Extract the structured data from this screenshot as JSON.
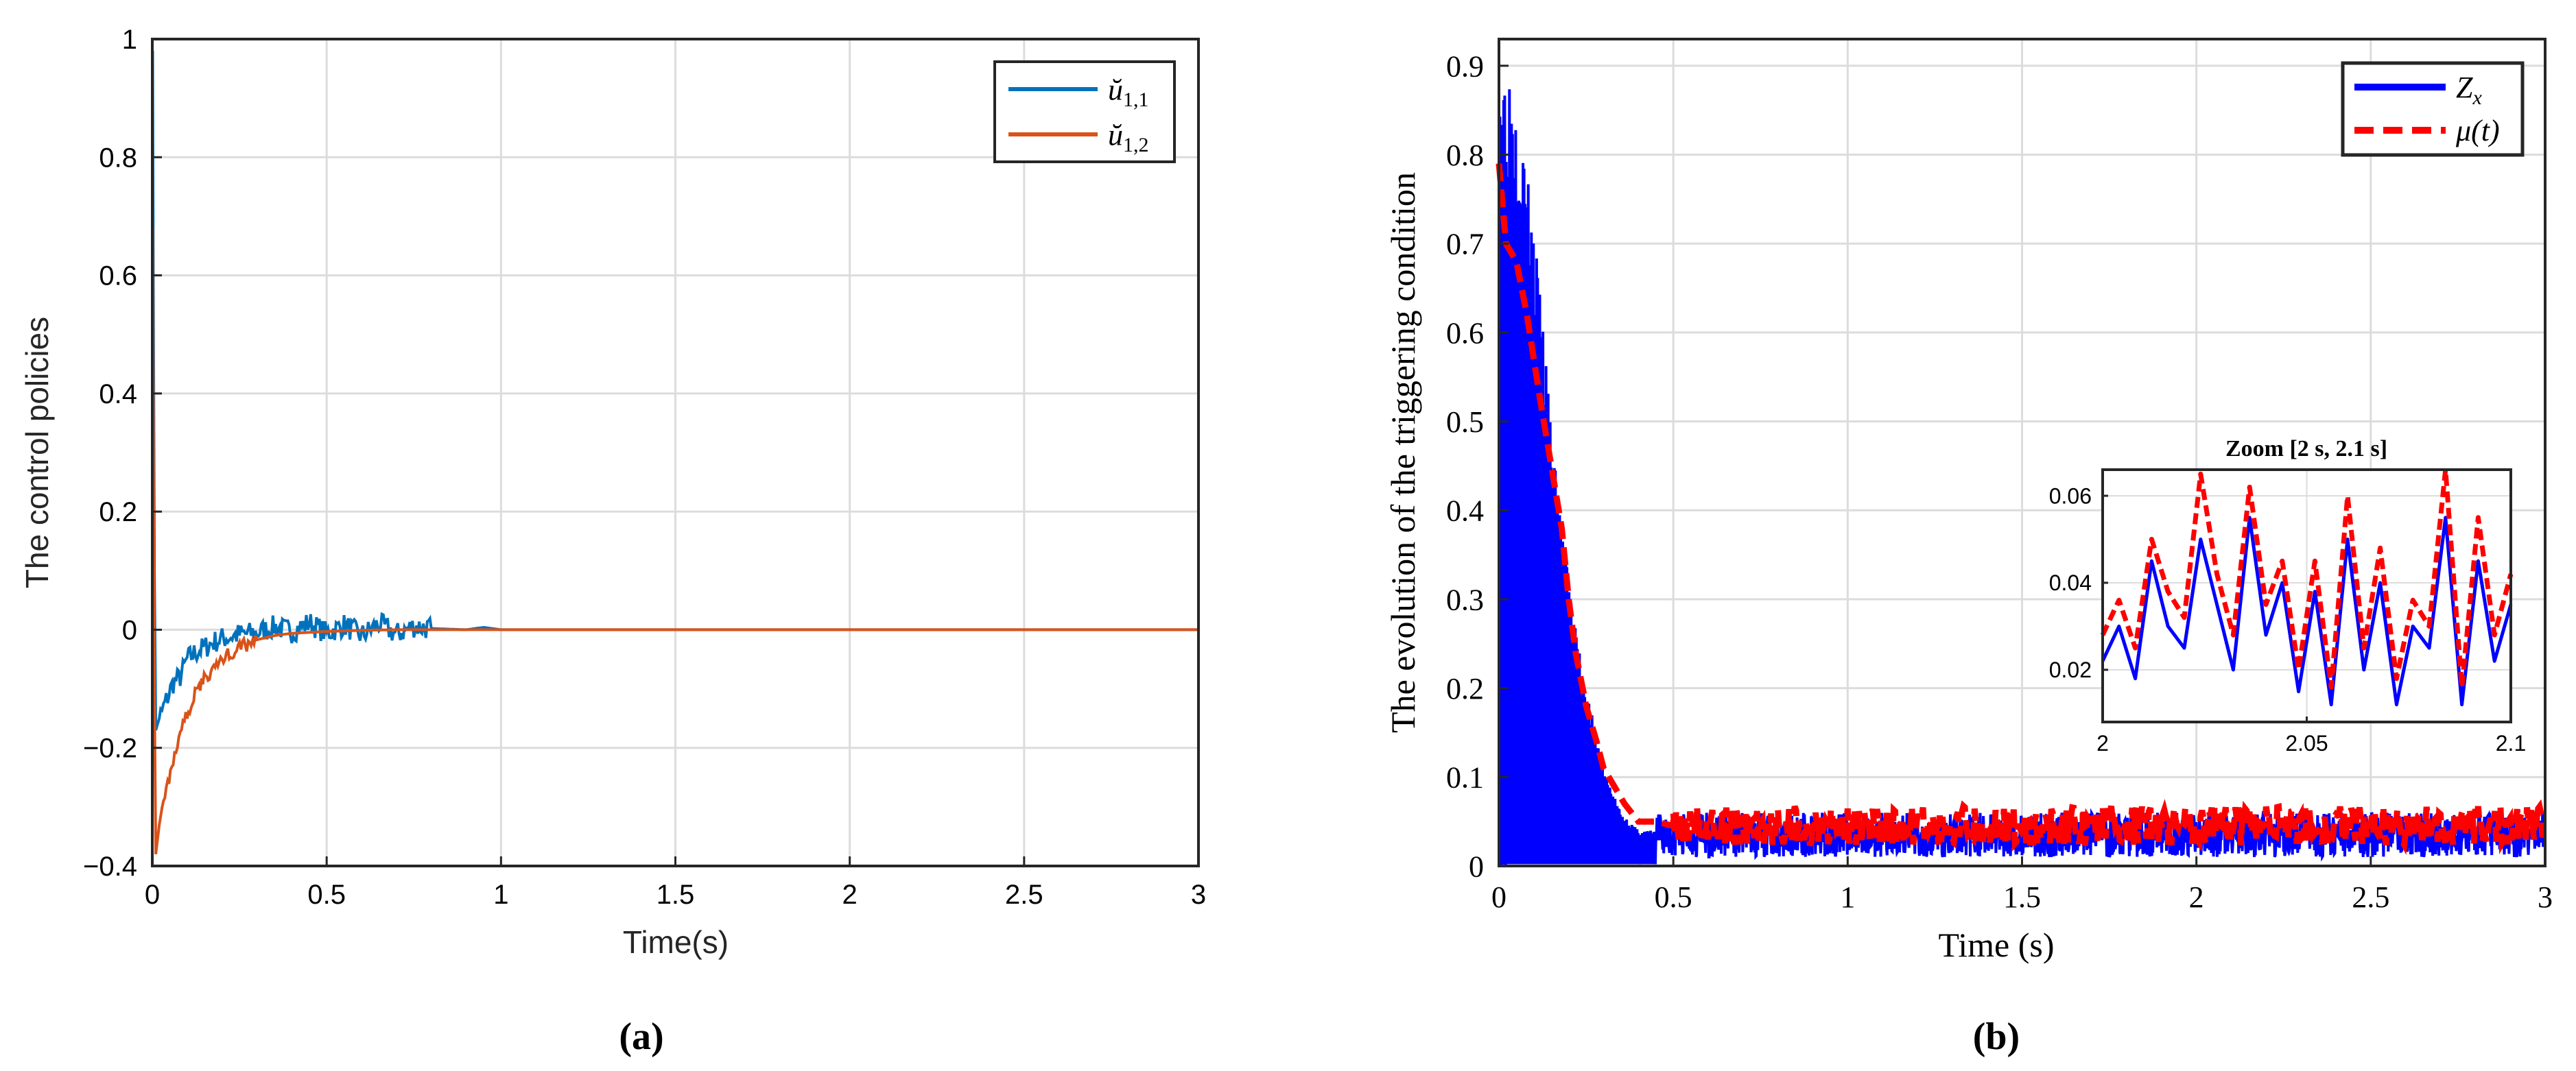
{
  "colors": {
    "a_series1": "#0072BD",
    "a_series2": "#D95319",
    "b_series1": "#0000FF",
    "b_series2": "#FF0000",
    "grid": "#dcdcdc",
    "axes": "#262626"
  },
  "chart_data": [
    {
      "id": "a",
      "type": "line",
      "caption": "(a)",
      "xlabel": "Time(s)",
      "ylabel": "The control policies",
      "xlim": [
        0,
        3
      ],
      "ylim": [
        -0.4,
        1
      ],
      "grid": true,
      "legend_position": "top-right",
      "xticks": [
        0,
        0.5,
        1,
        1.5,
        2,
        2.5,
        3
      ],
      "xtick_labels": [
        "0",
        "0.5",
        "1",
        "1.5",
        "2",
        "2.5",
        "3"
      ],
      "yticks": [
        -0.4,
        -0.2,
        0,
        0.2,
        0.4,
        0.6,
        0.8,
        1
      ],
      "ytick_labels": [
        "−0.4",
        "−0.2",
        "0",
        "0.2",
        "0.4",
        "0.6",
        "0.8",
        "1"
      ],
      "series": [
        {
          "legend_base": "ŭ",
          "legend_sub": "1,1",
          "x": [
            0,
            0.001,
            0.003,
            0.006,
            0.01,
            0.02,
            0.04,
            0.06,
            0.08,
            0.1,
            0.12,
            0.15,
            0.18,
            0.2,
            0.25,
            0.3,
            0.35,
            0.4,
            0.45,
            0.5,
            0.55,
            0.6,
            0.65,
            0.7,
            0.75,
            0.8,
            0.9,
            0.95,
            1.0,
            1.5,
            2.0,
            2.5,
            3.0
          ],
          "y": [
            0.0,
            0.98,
            0.6,
            0.1,
            -0.17,
            -0.15,
            -0.12,
            -0.09,
            -0.08,
            -0.05,
            -0.04,
            -0.03,
            -0.02,
            -0.015,
            -0.008,
            -0.005,
            0.005,
            -0.003,
            0.012,
            -0.006,
            0.008,
            -0.01,
            0.01,
            -0.008,
            0.006,
            0.002,
            0.0,
            0.004,
            0.0,
            0.0,
            0.0,
            0.0,
            0.0
          ]
        },
        {
          "legend_base": "ŭ",
          "legend_sub": "1,2",
          "x": [
            0,
            0.001,
            0.003,
            0.006,
            0.01,
            0.02,
            0.04,
            0.06,
            0.08,
            0.1,
            0.13,
            0.16,
            0.2,
            0.25,
            0.3,
            0.35,
            0.4,
            0.5,
            0.6,
            0.7,
            0.8,
            1.0,
            1.5,
            2.0,
            2.5,
            3.0
          ],
          "y": [
            0.0,
            0.68,
            0.3,
            -0.1,
            -0.38,
            -0.33,
            -0.27,
            -0.22,
            -0.18,
            -0.14,
            -0.1,
            -0.075,
            -0.05,
            -0.03,
            -0.017,
            -0.01,
            -0.006,
            -0.003,
            -0.001,
            0.0,
            0.0,
            0.0,
            0.0,
            0.0,
            0.0,
            0.0
          ]
        }
      ]
    },
    {
      "id": "b",
      "type": "line",
      "caption": "(b)",
      "xlabel": "Time (s)",
      "ylabel": "The evolution of the triggering condition",
      "xlim": [
        0,
        3
      ],
      "ylim": [
        0,
        0.93
      ],
      "grid": true,
      "legend_position": "top-right",
      "xticks": [
        0,
        0.5,
        1,
        1.5,
        2,
        2.5,
        3
      ],
      "xtick_labels": [
        "0",
        "0.5",
        "1",
        "1.5",
        "2",
        "2.5",
        "3"
      ],
      "yticks": [
        0,
        0.1,
        0.2,
        0.3,
        0.4,
        0.5,
        0.6,
        0.7,
        0.8,
        0.9
      ],
      "ytick_labels": [
        "0",
        "0.1",
        "0.2",
        "0.3",
        "0.4",
        "0.5",
        "0.6",
        "0.7",
        "0.8",
        "0.9"
      ],
      "series": [
        {
          "legend_base": "Z",
          "legend_sub": "x",
          "envelope_x": [
            0,
            0.05,
            0.1,
            0.15,
            0.2,
            0.25,
            0.3,
            0.35,
            0.4,
            0.45
          ],
          "envelope_y": [
            0.93,
            0.88,
            0.72,
            0.5,
            0.32,
            0.2,
            0.11,
            0.06,
            0.04,
            0.04
          ],
          "steady_level": 0.035
        },
        {
          "legend_base": "μ(t)",
          "legend_sub": "",
          "x": [
            0,
            0.02,
            0.05,
            0.08,
            0.1,
            0.12,
            0.15,
            0.18,
            0.2,
            0.22,
            0.25,
            0.28,
            0.3,
            0.33,
            0.36,
            0.4,
            0.45,
            0.5
          ],
          "y": [
            0.79,
            0.7,
            0.68,
            0.62,
            0.57,
            0.52,
            0.45,
            0.38,
            0.3,
            0.24,
            0.18,
            0.14,
            0.11,
            0.09,
            0.07,
            0.05,
            0.05,
            0.045
          ],
          "steady_level": 0.045
        }
      ],
      "inset": {
        "title": "Zoom [2 s, 2.1 s]",
        "xlim": [
          2,
          2.1
        ],
        "ylim": [
          0.008,
          0.066
        ],
        "xticks": [
          2,
          2.05,
          2.1
        ],
        "xtick_labels": [
          "2",
          "2.05",
          "2.1"
        ],
        "yticks": [
          0.02,
          0.04,
          0.06
        ],
        "ytick_labels": [
          "0.02",
          "0.04",
          "0.06"
        ],
        "series": [
          {
            "name_ref": "Z_x",
            "x": [
              2.0,
              2.004,
              2.008,
              2.012,
              2.016,
              2.02,
              2.024,
              2.028,
              2.032,
              2.036,
              2.04,
              2.044,
              2.048,
              2.052,
              2.056,
              2.06,
              2.064,
              2.068,
              2.072,
              2.076,
              2.08,
              2.084,
              2.088,
              2.092,
              2.096,
              2.1
            ],
            "y": [
              0.022,
              0.03,
              0.018,
              0.045,
              0.03,
              0.025,
              0.05,
              0.035,
              0.02,
              0.055,
              0.028,
              0.04,
              0.015,
              0.038,
              0.012,
              0.05,
              0.02,
              0.04,
              0.012,
              0.03,
              0.025,
              0.055,
              0.012,
              0.045,
              0.022,
              0.035
            ]
          },
          {
            "name_ref": "mu",
            "x": [
              2.0,
              2.004,
              2.008,
              2.012,
              2.016,
              2.02,
              2.024,
              2.028,
              2.032,
              2.036,
              2.04,
              2.044,
              2.048,
              2.052,
              2.056,
              2.06,
              2.064,
              2.068,
              2.072,
              2.076,
              2.08,
              2.084,
              2.088,
              2.092,
              2.096,
              2.1
            ],
            "y": [
              0.028,
              0.036,
              0.025,
              0.05,
              0.038,
              0.032,
              0.065,
              0.042,
              0.028,
              0.062,
              0.035,
              0.045,
              0.02,
              0.045,
              0.016,
              0.06,
              0.025,
              0.048,
              0.018,
              0.036,
              0.03,
              0.066,
              0.016,
              0.055,
              0.028,
              0.042
            ]
          }
        ]
      }
    }
  ]
}
